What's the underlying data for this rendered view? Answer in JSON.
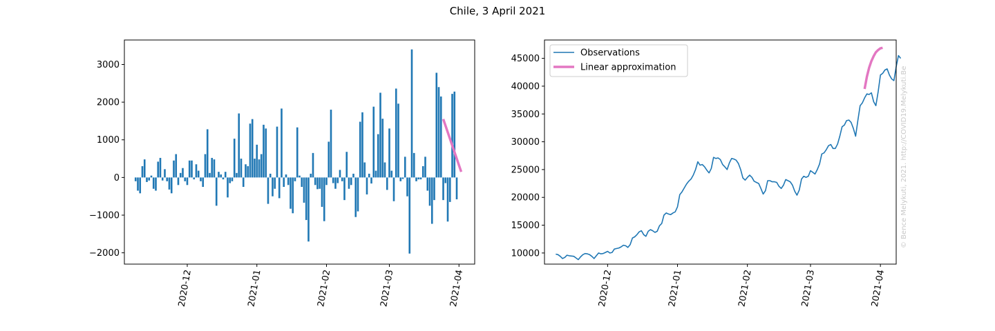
{
  "figure": {
    "title": "Chile, 3 April 2021",
    "watermark": "© Bence Melykuti, 2021. http://COVID19.Melykuti.Be"
  },
  "colors": {
    "bars": "#1f77b4",
    "observations": "#1f77b4",
    "approximation": "#e377c2"
  },
  "chart_data": [
    {
      "type": "bar",
      "title": "",
      "xlabel": "",
      "ylabel": "",
      "x_tick_labels": [
        "2020-12",
        "2021-01",
        "2021-02",
        "2021-03",
        "2021-04"
      ],
      "x_ticks": [
        "2020-12-01",
        "2021-01-01",
        "2021-02-01",
        "2021-03-01",
        "2021-04-01"
      ],
      "ylim": [
        -2300,
        3650
      ],
      "y_ticks": [
        -2000,
        -1000,
        0,
        1000,
        2000,
        3000
      ],
      "y_tick_labels": [
        "−2000",
        "−1000",
        "0",
        "1000",
        "2000",
        "3000"
      ],
      "start_date": "2020-11-08",
      "values": [
        -100,
        -350,
        -420,
        300,
        480,
        -120,
        -80,
        50,
        -300,
        -350,
        420,
        520,
        -80,
        220,
        -100,
        -320,
        -420,
        450,
        620,
        -200,
        120,
        250,
        -100,
        -200,
        450,
        450,
        -50,
        350,
        180,
        -100,
        -250,
        620,
        1280,
        120,
        520,
        480,
        -750,
        150,
        80,
        -50,
        150,
        -530,
        -150,
        -100,
        1030,
        120,
        1700,
        500,
        -250,
        350,
        300,
        1430,
        1550,
        500,
        870,
        480,
        620,
        1400,
        1300,
        -700,
        100,
        -500,
        -300,
        1350,
        -550,
        1830,
        -250,
        80,
        -200,
        -830,
        -950,
        -100,
        1330,
        50,
        -250,
        -670,
        -1130,
        -1700,
        100,
        650,
        -200,
        -310,
        -300,
        -780,
        -1160,
        -200,
        950,
        1800,
        -150,
        -300,
        -150,
        200,
        -100,
        -600,
        680,
        -300,
        -200,
        100,
        -1050,
        -900,
        1480,
        1730,
        400,
        -450,
        100,
        -160,
        1880,
        180,
        1150,
        2250,
        1560,
        400,
        -330,
        1300,
        180,
        -630,
        2360,
        1960,
        -100,
        -40,
        550,
        -500,
        -2020,
        3400,
        650,
        -100,
        -50,
        -50,
        300,
        550,
        -350,
        -750,
        -1230,
        -600,
        2780,
        2400,
        2150,
        -600,
        -150,
        -1170,
        -650,
        2220,
        2280,
        -580
      ],
      "fit_label": "Linear approximation",
      "fit": {
        "x": [
          "2021-03-25",
          "2021-04-02"
        ],
        "y": [
          1550,
          150
        ]
      }
    },
    {
      "type": "line",
      "title": "",
      "xlabel": "",
      "ylabel": "",
      "x_tick_labels": [
        "2020-12",
        "2021-01",
        "2021-02",
        "2021-03",
        "2021-04"
      ],
      "x_ticks": [
        "2020-12-01",
        "2021-01-01",
        "2021-02-01",
        "2021-03-01",
        "2021-04-01"
      ],
      "ylim": [
        8000,
        48300
      ],
      "y_ticks": [
        10000,
        15000,
        20000,
        25000,
        30000,
        35000,
        40000,
        45000
      ],
      "y_tick_labels": [
        "10000",
        "15000",
        "20000",
        "25000",
        "30000",
        "35000",
        "40000",
        "45000"
      ],
      "legend_position": "top-left",
      "series": [
        {
          "name": "Observations",
          "start_date": "2020-11-08",
          "values": [
            9800,
            9700,
            9400,
            9000,
            9200,
            9600,
            9500,
            9450,
            9400,
            9100,
            8800,
            9300,
            9700,
            9900,
            9850,
            9700,
            9400,
            9000,
            9500,
            10000,
            9850,
            9900,
            10100,
            10300,
            10000,
            10100,
            10700,
            10800,
            10900,
            11100,
            11400,
            11300,
            11000,
            11500,
            12700,
            12900,
            13300,
            13800,
            14000,
            13300,
            13000,
            13900,
            14200,
            14000,
            13700,
            13900,
            14900,
            15300,
            16800,
            17200,
            17000,
            16900,
            17200,
            17400,
            18300,
            20500,
            21000,
            21700,
            22400,
            22900,
            23300,
            24000,
            25000,
            26400,
            25800,
            25900,
            25500,
            24900,
            24400,
            25200,
            27200,
            27000,
            27100,
            26800,
            25900,
            25500,
            25000,
            26200,
            27000,
            26900,
            26700,
            26100,
            25000,
            23500,
            23100,
            23600,
            24000,
            23600,
            22900,
            22700,
            22500,
            21600,
            20600,
            21200,
            23000,
            23000,
            22800,
            22800,
            22700,
            22000,
            21600,
            22200,
            23200,
            23000,
            22800,
            22200,
            21100,
            20400,
            21300,
            23300,
            23800,
            23600,
            23800,
            24800,
            24500,
            24200,
            25000,
            26000,
            27800,
            28000,
            28600,
            29300,
            29500,
            28800,
            28800,
            29600,
            31000,
            32700,
            33000,
            33800,
            33900,
            33500,
            32400,
            31000,
            33800,
            36500,
            37000,
            37900,
            38600,
            38500,
            38800,
            37200,
            36500,
            39000,
            42000,
            42300,
            42900,
            43100,
            42000,
            41300,
            41000,
            43500,
            45500,
            45000
          ]
        },
        {
          "name": "Linear approximation",
          "start_date": "2021-03-25",
          "values": [
            39500,
            41700,
            43300,
            44500,
            45400,
            46100,
            46500,
            46800,
            46900
          ]
        }
      ]
    }
  ]
}
